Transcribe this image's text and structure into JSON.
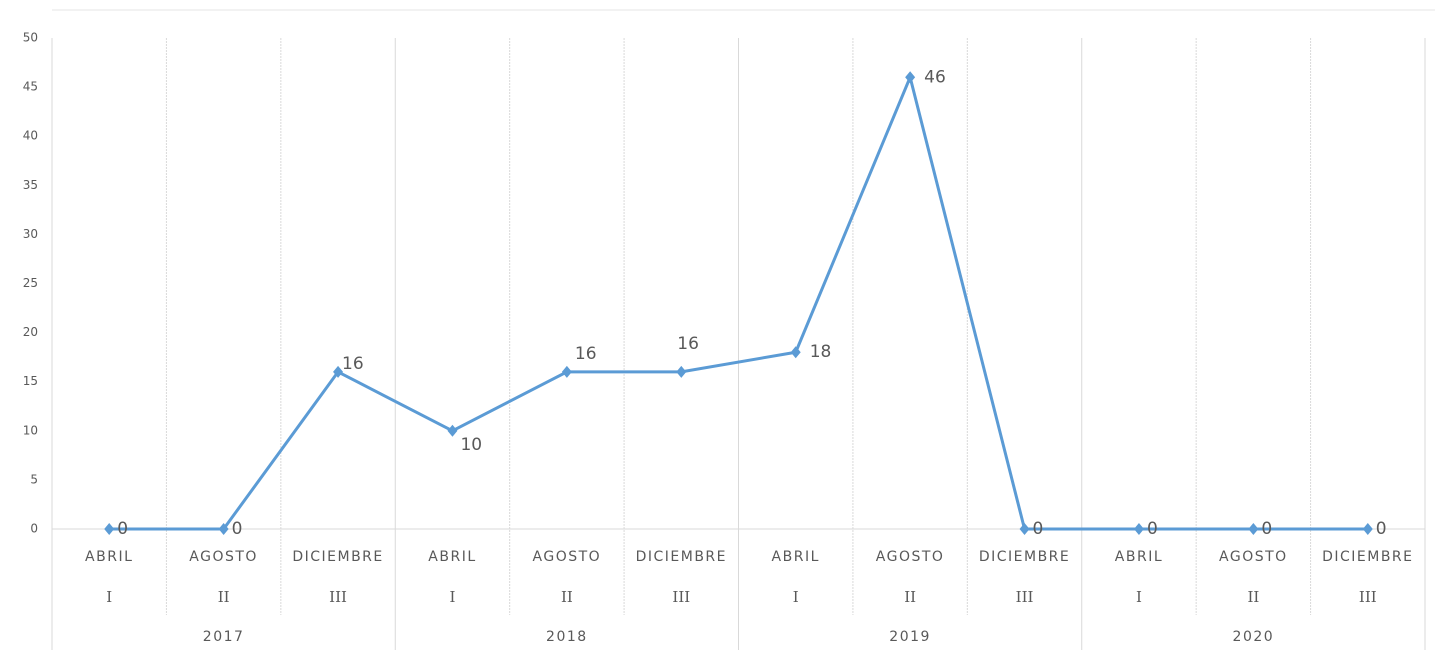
{
  "chart_data": {
    "type": "line",
    "categories": [
      "ABRIL",
      "AGOSTO",
      "DICIEMBRE",
      "ABRIL",
      "AGOSTO",
      "DICIEMBRE",
      "ABRIL",
      "AGOSTO",
      "DICIEMBRE",
      "ABRIL",
      "AGOSTO",
      "DICIEMBRE"
    ],
    "subcategories": [
      "I",
      "II",
      "III",
      "I",
      "II",
      "III",
      "I",
      "II",
      "III",
      "I",
      "II",
      "III"
    ],
    "groups": [
      "2017",
      "2018",
      "2019",
      "2020"
    ],
    "values": [
      0,
      0,
      16,
      10,
      16,
      16,
      18,
      46,
      0,
      0,
      0,
      0
    ],
    "color": "#5b9bd5",
    "ylim": [
      0,
      50
    ],
    "yticks": [
      0,
      5,
      10,
      15,
      20,
      25,
      30,
      35,
      40,
      45,
      50
    ],
    "grid": true
  }
}
